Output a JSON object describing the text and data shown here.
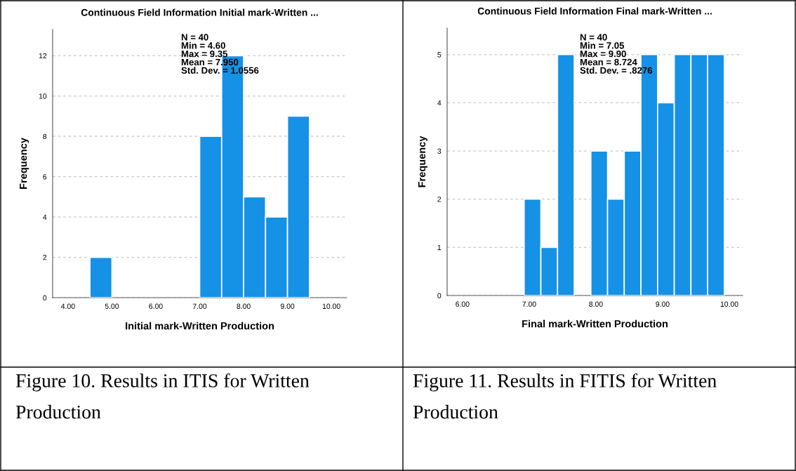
{
  "chart_data": [
    {
      "type": "histogram",
      "title": "Continuous Field Information Initial mark-Written ...",
      "xlabel": "Initial mark-Written Production",
      "ylabel": "Frequency",
      "color": "#1591e6",
      "bins": [
        4.5,
        5.0,
        5.5,
        6.0,
        6.5,
        7.0,
        7.5,
        8.0,
        8.5,
        9.0,
        9.5
      ],
      "values": [
        2,
        0,
        0,
        0,
        0,
        8,
        12,
        5,
        4,
        9
      ],
      "xlim": [
        3.65,
        10.35
      ],
      "ylim": [
        0,
        13.3
      ],
      "xticks": [
        {
          "value": 4,
          "label": "4.00"
        },
        {
          "value": 5,
          "label": "5.00"
        },
        {
          "value": 6,
          "label": "6.00"
        },
        {
          "value": 7,
          "label": "7.00"
        },
        {
          "value": 8,
          "label": "8.00"
        },
        {
          "value": 9,
          "label": "9.00"
        },
        {
          "value": 10,
          "label": "10.00"
        }
      ],
      "yticks": [
        0,
        2,
        4,
        6,
        8,
        10,
        12
      ],
      "grid": "y",
      "annotations": [
        "N = 40\nMin = 4.60\nMax = 9.35\nMean = 7.950\nStd. Dev. = 1.0556",
        "Figure 10. Results in ITIS for Written Production"
      ]
    },
    {
      "type": "histogram",
      "title": "Continuous Field Information Final mark-Written ...",
      "xlabel": "Final mark-Written Production",
      "ylabel": "Frequency",
      "color": "#1591e6",
      "bins": [
        6.925,
        7.175,
        7.425,
        7.675,
        7.925,
        8.175,
        8.425,
        8.675,
        8.925,
        9.175,
        9.425,
        9.675,
        9.925
      ],
      "values": [
        2,
        1,
        5,
        0,
        3,
        2,
        3,
        5,
        4,
        5,
        5,
        5
      ],
      "xlim": [
        5.77,
        10.2
      ],
      "ylim": [
        0,
        5.55
      ],
      "xticks": [
        {
          "value": 6,
          "label": "6.00"
        },
        {
          "value": 7,
          "label": "7.00"
        },
        {
          "value": 8,
          "label": "8.00"
        },
        {
          "value": 9,
          "label": "9.00"
        },
        {
          "value": 10,
          "label": "10.00"
        }
      ],
      "yticks": [
        0,
        1,
        2,
        3,
        4,
        5
      ],
      "grid": "y",
      "annotations": [
        "N = 40\nMin = 7.05\nMax = 9.90\nMean = 8.724\nStd. Dev. = .8276",
        "Figure 11. Results in FITIS for Written Production"
      ]
    }
  ]
}
